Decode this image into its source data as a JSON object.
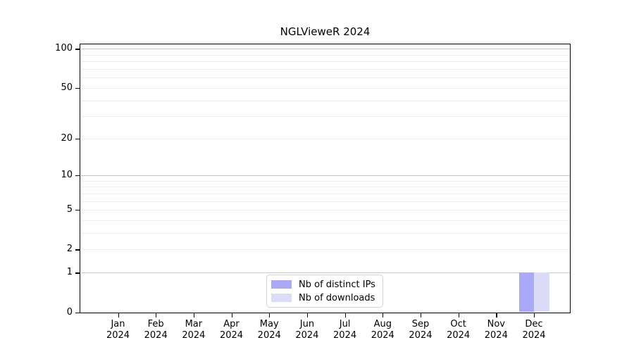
{
  "chart_data": {
    "type": "bar",
    "title": "NGLVieweR 2024",
    "categories": [
      "Jan",
      "Feb",
      "Mar",
      "Apr",
      "May",
      "Jun",
      "Jul",
      "Aug",
      "Sep",
      "Oct",
      "Nov",
      "Dec"
    ],
    "x_second_line": "2024",
    "series": [
      {
        "name": "Nb of distinct IPs",
        "color": "#a9a9f7",
        "values": [
          0,
          0,
          0,
          0,
          0,
          0,
          0,
          0,
          0,
          0,
          0,
          1
        ]
      },
      {
        "name": "Nb of downloads",
        "color": "#dcdcf9",
        "values": [
          0,
          0,
          0,
          0,
          0,
          0,
          0,
          0,
          0,
          0,
          0,
          1
        ]
      }
    ],
    "yscale": "log1p",
    "yticks": [
      0,
      1,
      2,
      5,
      10,
      20,
      50,
      100
    ],
    "ylim": [
      0,
      110
    ],
    "grid": {
      "major": [
        1,
        10,
        100
      ],
      "minor": [
        2,
        3,
        4,
        5,
        6,
        7,
        8,
        9,
        20,
        30,
        40,
        50,
        60,
        70,
        80,
        90
      ]
    },
    "legend_position": "bottom-center-inside",
    "colors": {
      "axis": "#000000",
      "grid_major": "#c6c6c6",
      "grid_minor": "#ededed",
      "legend_border": "#d2d2d2"
    }
  }
}
